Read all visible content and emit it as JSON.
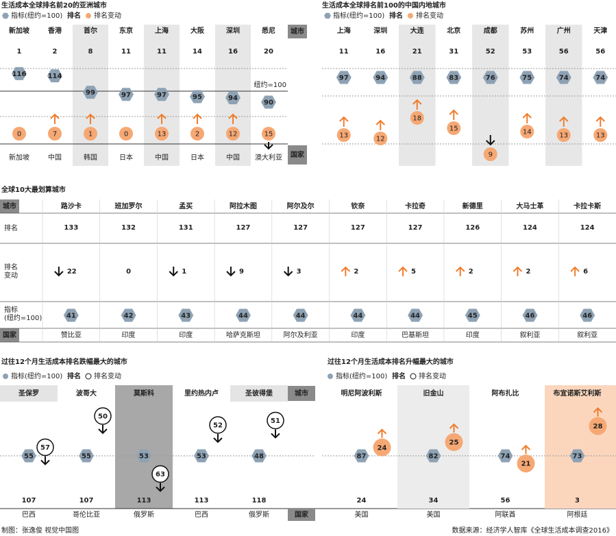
{
  "asia": {
    "title": "生活成本全球排名前20的亚洲城市",
    "legend": {
      "index": "指标(纽约=100)",
      "rank": "排名",
      "change": "排名变动"
    },
    "city_header": "城市",
    "country_header": "国家",
    "baseline": "纽约=100",
    "cities": [
      {
        "name": "新加坡",
        "rank": 1,
        "index": 116,
        "change": 0,
        "trend": "none",
        "country": "新加坡"
      },
      {
        "name": "香港",
        "rank": 2,
        "index": 114,
        "change": 7,
        "trend": "up",
        "country": "中国"
      },
      {
        "name": "首尔",
        "rank": 8,
        "index": 99,
        "change": 1,
        "trend": "up",
        "country": "韩国"
      },
      {
        "name": "东京",
        "rank": 11,
        "index": 97,
        "change": 0,
        "trend": "none",
        "country": "日本"
      },
      {
        "name": "上海",
        "rank": 11,
        "index": 97,
        "change": 13,
        "trend": "up",
        "country": "中国"
      },
      {
        "name": "大阪",
        "rank": 14,
        "index": 95,
        "change": 2,
        "trend": "up",
        "country": "日本"
      },
      {
        "name": "深圳",
        "rank": 16,
        "index": 94,
        "change": 12,
        "trend": "up",
        "country": "中国"
      },
      {
        "name": "悉尼",
        "rank": 20,
        "index": 90,
        "change": 15,
        "trend": "down",
        "country": "澳大利亚"
      }
    ]
  },
  "china": {
    "title": "生活成本全球排名前100的中国内地城市",
    "legend": {
      "index": "指标(纽约=100)",
      "rank": "排名",
      "change": "排名变动"
    },
    "cities": [
      {
        "name": "上海",
        "rank": 11,
        "index": 97,
        "change": 13,
        "trend": "up"
      },
      {
        "name": "深圳",
        "rank": 16,
        "index": 94,
        "change": 12,
        "trend": "up"
      },
      {
        "name": "大连",
        "rank": 21,
        "index": 88,
        "change": 18,
        "trend": "up"
      },
      {
        "name": "北京",
        "rank": 31,
        "index": 83,
        "change": 15,
        "trend": "up"
      },
      {
        "name": "成都",
        "rank": 52,
        "index": 76,
        "change": 9,
        "trend": "down"
      },
      {
        "name": "苏州",
        "rank": 53,
        "index": 75,
        "change": 14,
        "trend": "up"
      },
      {
        "name": "广州",
        "rank": 56,
        "index": 74,
        "change": 13,
        "trend": "up"
      },
      {
        "name": "天津",
        "rank": 56,
        "index": 74,
        "change": 13,
        "trend": "up"
      }
    ]
  },
  "cheapest": {
    "title": "全球10大最划算城市",
    "row_headers": {
      "city": "城市",
      "rank": "排名",
      "change": [
        "排名",
        "变动"
      ],
      "index": [
        "指标",
        "(纽约=100)"
      ],
      "country": "国家"
    },
    "cities": [
      {
        "name": "路沙卡",
        "rank": 133,
        "change": 22,
        "trend": "down",
        "index": 41,
        "country": "赞比亚"
      },
      {
        "name": "班加罗尔",
        "rank": 132,
        "change": 0,
        "trend": "none",
        "index": 42,
        "country": "印度"
      },
      {
        "name": "孟买",
        "rank": 131,
        "change": 1,
        "trend": "down",
        "index": 43,
        "country": "印度"
      },
      {
        "name": "阿拉木图",
        "rank": 127,
        "change": 9,
        "trend": "down",
        "index": 44,
        "country": "哈萨克斯坦"
      },
      {
        "name": "阿尔及尔",
        "rank": 127,
        "change": 3,
        "trend": "down",
        "index": 44,
        "country": "阿尔及利亚"
      },
      {
        "name": "钦奈",
        "rank": 127,
        "change": 2,
        "trend": "up",
        "index": 44,
        "country": "印度"
      },
      {
        "name": "卡拉奇",
        "rank": 127,
        "change": 5,
        "trend": "up",
        "index": 44,
        "country": "巴基斯坦"
      },
      {
        "name": "新德里",
        "rank": 126,
        "change": 2,
        "trend": "up",
        "index": 45,
        "country": "印度"
      },
      {
        "name": "大马士革",
        "rank": 124,
        "change": 2,
        "trend": "up",
        "index": 46,
        "country": "叙利亚"
      },
      {
        "name": "卡拉卡斯",
        "rank": 124,
        "change": 6,
        "trend": "up",
        "index": 46,
        "country": "叙利亚"
      }
    ]
  },
  "fallers": {
    "title": "过往12个月生活成本排名跌幅最大的城市",
    "legend": {
      "index": "指标(纽约=100)",
      "rank": "排名",
      "change": "排名变动"
    },
    "city_header": "城市",
    "country_header": "国家",
    "cities": [
      {
        "name": "圣保罗",
        "index": 55,
        "change": 57,
        "trend": "down",
        "rank": 107,
        "country": "巴西",
        "highlight": false
      },
      {
        "name": "波哥大",
        "index": 55,
        "change": 50,
        "trend": "down",
        "rank": 107,
        "country": "哥伦比亚",
        "highlight": false
      },
      {
        "name": "莫斯科",
        "index": 53,
        "change": 63,
        "trend": "down",
        "rank": 113,
        "country": "俄罗斯",
        "highlight": true
      },
      {
        "name": "里约热内卢",
        "index": 53,
        "change": 52,
        "trend": "down",
        "rank": 113,
        "country": "巴西",
        "highlight": false
      },
      {
        "name": "圣彼得堡",
        "index": 48,
        "change": 51,
        "trend": "down",
        "rank": 118,
        "country": "俄罗斯",
        "highlight": false
      }
    ]
  },
  "risers": {
    "title": "过往12个月生活成本排名升幅最大的城市",
    "legend": {
      "index": "指标(纽约=100)",
      "rank": "排名",
      "change": "排名变动"
    },
    "cities": [
      {
        "name": "明尼阿波利斯",
        "index": 87,
        "change": 24,
        "trend": "up",
        "rank": 24,
        "country": "美国",
        "highlight": false
      },
      {
        "name": "旧金山",
        "index": 82,
        "change": 25,
        "trend": "up",
        "rank": 34,
        "country": "美国",
        "highlight": false
      },
      {
        "name": "阿布扎比",
        "index": 74,
        "change": 21,
        "trend": "up",
        "rank": 56,
        "country": "阿联酋",
        "highlight": false
      },
      {
        "name": "布宜诺斯艾利斯",
        "index": 73,
        "change": 28,
        "trend": "up",
        "rank": 3,
        "country": "阿根廷",
        "highlight": true
      }
    ]
  },
  "footer": {
    "credit": "制图：张逸俊 视觉中国图",
    "source": "数据来源：经济学人智库《全球生活成本调查2016》"
  }
}
